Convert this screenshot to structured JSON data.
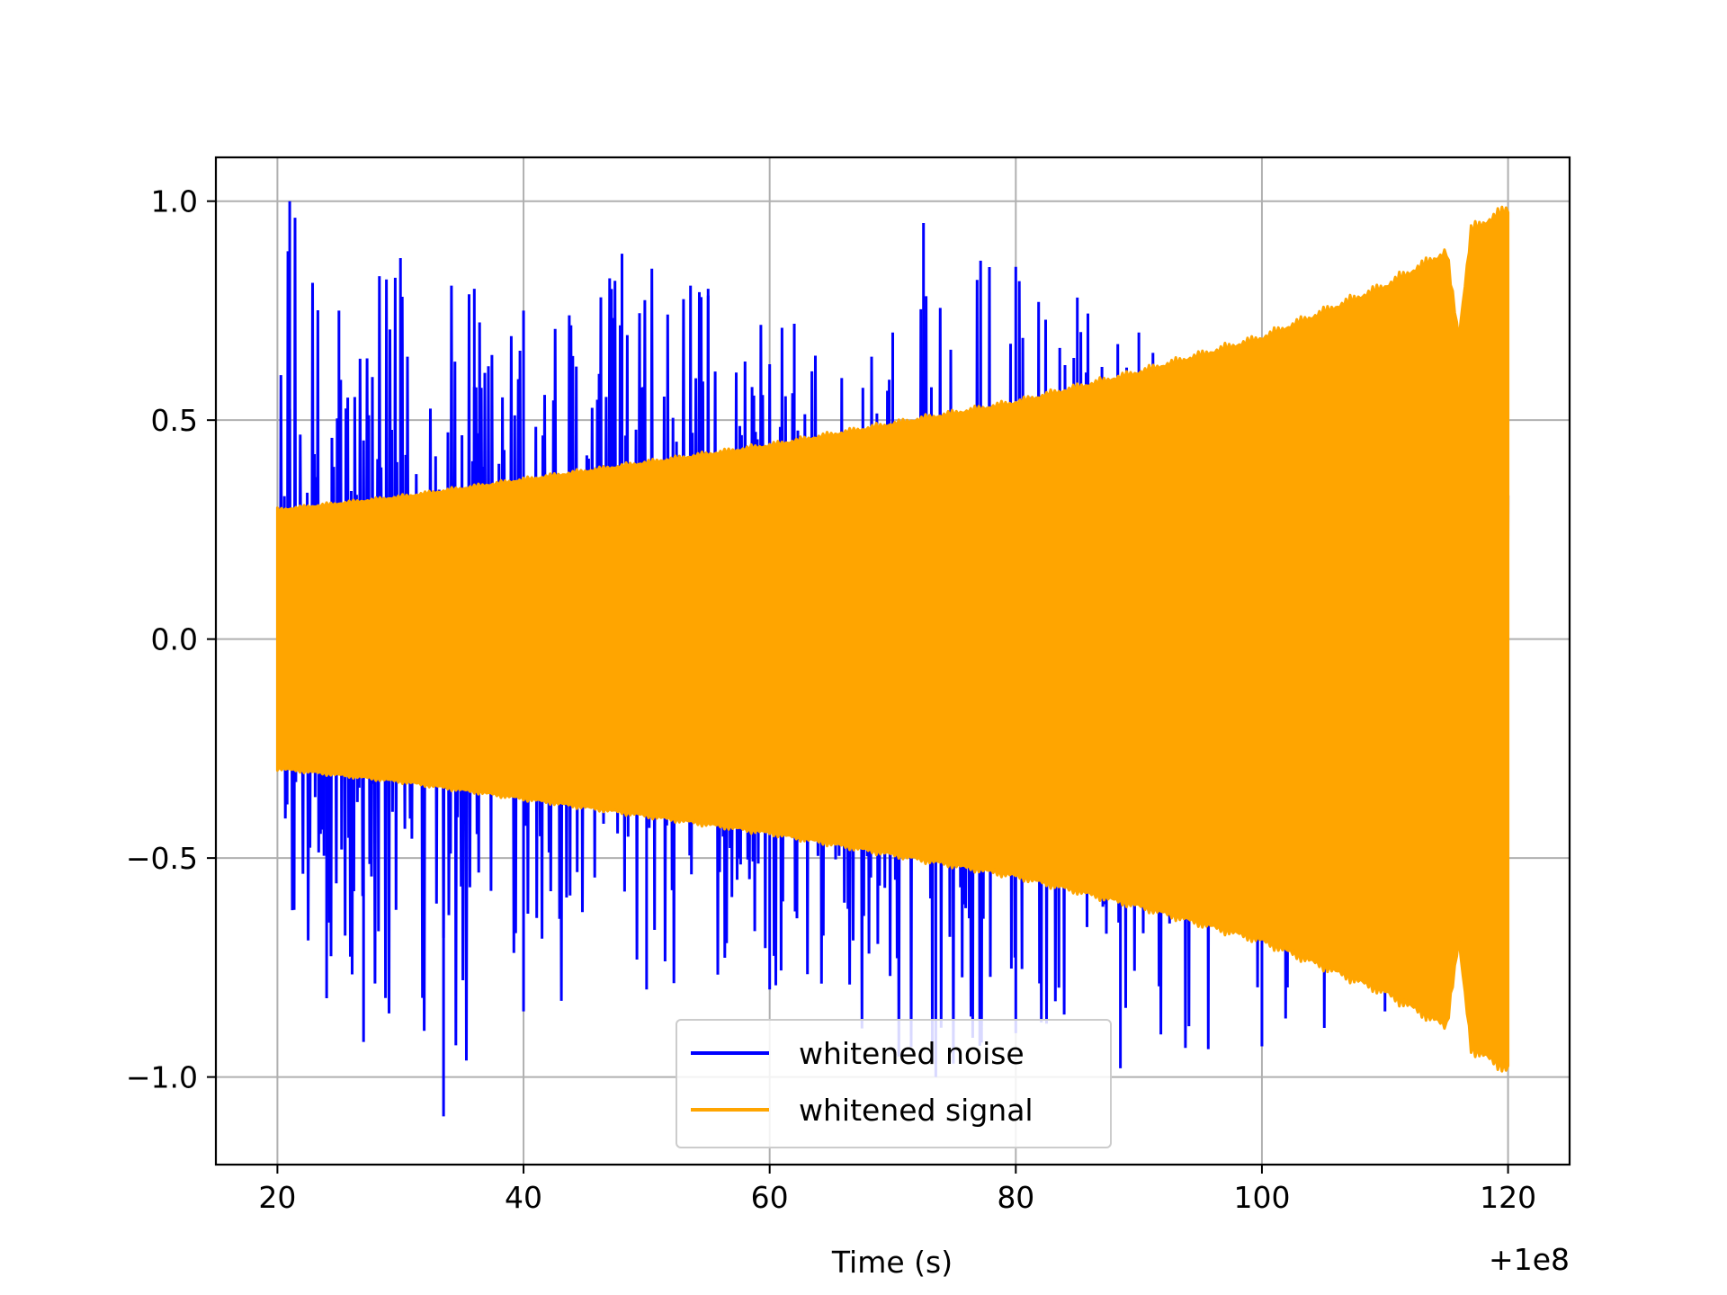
{
  "chart_data": {
    "type": "line",
    "title": "",
    "xlabel": "Time (s)",
    "ylabel": "",
    "x_offset_label": "+1e8",
    "xlim": [
      15,
      125
    ],
    "ylim": [
      -1.2,
      1.1
    ],
    "grid": true,
    "legend_position": "lower center",
    "x_ticks": [
      20,
      40,
      60,
      80,
      100,
      120
    ],
    "x_tick_labels": [
      "20",
      "40",
      "60",
      "80",
      "100",
      "120"
    ],
    "y_ticks": [
      -1.0,
      -0.5,
      0.0,
      0.5,
      1.0
    ],
    "y_tick_labels": [
      "−1.0",
      "−0.5",
      "0.0",
      "0.5",
      "1.0"
    ],
    "series": [
      {
        "name": "whitened noise",
        "color": "#0000ff",
        "x_range": [
          20,
          120
        ],
        "upper_envelope": [
          [
            20,
            0.6
          ],
          [
            21,
            1.0
          ],
          [
            25,
            0.75
          ],
          [
            30,
            0.87
          ],
          [
            36,
            0.8
          ],
          [
            40,
            0.75
          ],
          [
            48,
            0.88
          ],
          [
            55,
            0.8
          ],
          [
            62,
            0.72
          ],
          [
            70,
            0.7
          ],
          [
            72.5,
            0.95
          ],
          [
            80,
            0.85
          ],
          [
            85,
            0.78
          ],
          [
            90,
            0.7
          ],
          [
            100,
            0.65
          ],
          [
            110,
            0.6
          ],
          [
            120,
            0.55
          ]
        ],
        "lower_envelope": [
          [
            20,
            -0.6
          ],
          [
            24,
            -0.82
          ],
          [
            27,
            -0.92
          ],
          [
            33.5,
            -1.09
          ],
          [
            40,
            -0.85
          ],
          [
            50,
            -0.8
          ],
          [
            60,
            -0.8
          ],
          [
            73.5,
            -1.0
          ],
          [
            80,
            -0.9
          ],
          [
            88.5,
            -0.98
          ],
          [
            100,
            -0.93
          ],
          [
            110,
            -0.85
          ],
          [
            120,
            -0.8
          ]
        ]
      },
      {
        "name": "whitened signal",
        "color": "#ffa500",
        "x_range": [
          20,
          120
        ],
        "envelope": [
          [
            20,
            0.3
          ],
          [
            30,
            0.33
          ],
          [
            40,
            0.37
          ],
          [
            50,
            0.41
          ],
          [
            60,
            0.45
          ],
          [
            70,
            0.5
          ],
          [
            80,
            0.55
          ],
          [
            90,
            0.62
          ],
          [
            100,
            0.7
          ],
          [
            110,
            0.82
          ],
          [
            115,
            0.9
          ],
          [
            116,
            0.7
          ],
          [
            117,
            0.95
          ],
          [
            120,
            1.0
          ]
        ]
      }
    ]
  }
}
